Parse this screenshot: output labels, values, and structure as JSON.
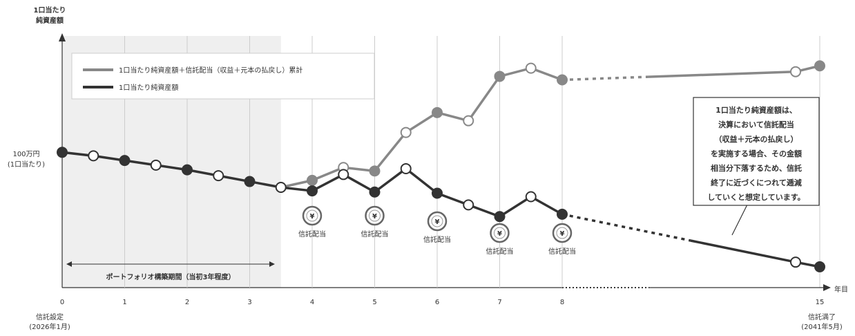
{
  "chart_data": {
    "type": "line",
    "ylabel_lines": [
      "1口当たり",
      "純資産額"
    ],
    "xlabel": "年目",
    "y_label_100": [
      "100万円",
      "(1口当たり)"
    ],
    "x_ticks": [
      0,
      1,
      2,
      3,
      4,
      5,
      6,
      7,
      8,
      15
    ],
    "x_start_label": [
      "信託設定",
      "(2026年1月)"
    ],
    "x_end_label": [
      "信託満了",
      "(2041年5月)"
    ],
    "build_period_label": "ポートフォリオ構築期間（当初3年程度）",
    "build_period_range": [
      0,
      3.5
    ],
    "legend": [
      "1口当たり純資産額＋信託配当（収益＋元本の払戻し）累計",
      "1口当たり純資産額"
    ],
    "series": [
      {
        "name": "1口当たり純資産額＋信託配当（収益＋元本の払戻し）累計",
        "color": "#888888",
        "points": [
          {
            "x": 3.5,
            "y": 100,
            "filled": false
          },
          {
            "x": 4,
            "y": 106,
            "filled": true
          },
          {
            "x": 4.5,
            "y": 117,
            "filled": false
          },
          {
            "x": 5,
            "y": 114,
            "filled": true
          },
          {
            "x": 5.5,
            "y": 147,
            "filled": false
          },
          {
            "x": 6,
            "y": 164,
            "filled": true
          },
          {
            "x": 6.5,
            "y": 157,
            "filled": false
          },
          {
            "x": 7,
            "y": 195,
            "filled": true
          },
          {
            "x": 7.5,
            "y": 202,
            "filled": false
          },
          {
            "x": 8,
            "y": 192,
            "filled": true
          },
          {
            "x": 14.6,
            "y": 199,
            "filled": false
          },
          {
            "x": 15,
            "y": 204,
            "filled": true
          }
        ],
        "dashed_between": [
          8,
          14.6
        ]
      },
      {
        "name": "1口当たり純資産額",
        "color": "#333333",
        "points": [
          {
            "x": 0,
            "y": 130,
            "filled": true
          },
          {
            "x": 0.5,
            "y": 127,
            "filled": false
          },
          {
            "x": 1,
            "y": 123,
            "filled": true
          },
          {
            "x": 1.5,
            "y": 119,
            "filled": false
          },
          {
            "x": 2,
            "y": 115,
            "filled": true
          },
          {
            "x": 2.5,
            "y": 110,
            "filled": false
          },
          {
            "x": 3,
            "y": 105,
            "filled": true
          },
          {
            "x": 3.5,
            "y": 100,
            "filled": false
          },
          {
            "x": 4,
            "y": 97,
            "filled": true
          },
          {
            "x": 4.5,
            "y": 111,
            "filled": false
          },
          {
            "x": 5,
            "y": 96,
            "filled": true
          },
          {
            "x": 5.5,
            "y": 116,
            "filled": false
          },
          {
            "x": 6,
            "y": 95,
            "filled": true
          },
          {
            "x": 6.5,
            "y": 85,
            "filled": false
          },
          {
            "x": 7,
            "y": 75,
            "filled": true
          },
          {
            "x": 7.5,
            "y": 92,
            "filled": false
          },
          {
            "x": 8,
            "y": 77,
            "filled": true
          },
          {
            "x": 14.6,
            "y": 36,
            "filled": false
          },
          {
            "x": 15,
            "y": 32,
            "filled": true
          }
        ],
        "dashed_between": [
          8,
          11
        ]
      }
    ],
    "dividends": [
      {
        "x": 4,
        "label": "信託配当",
        "row": 0
      },
      {
        "x": 5,
        "label": "信託配当",
        "row": 0
      },
      {
        "x": 6,
        "label": "信託配当",
        "row": 1
      },
      {
        "x": 7,
        "label": "信託配当",
        "row": 2
      },
      {
        "x": 8,
        "label": "信託配当",
        "row": 2
      }
    ],
    "dividend_icon": "yen-coin-icon",
    "callout_lines": [
      "1口当たり純資産額は、",
      "決算において信託配当",
      "（収益＋元本の払戻し）",
      "を実施する場合、その金額",
      "相当分下落するため、信託",
      "終了に近づくにつれて逓減",
      "していくと想定しています。"
    ]
  }
}
